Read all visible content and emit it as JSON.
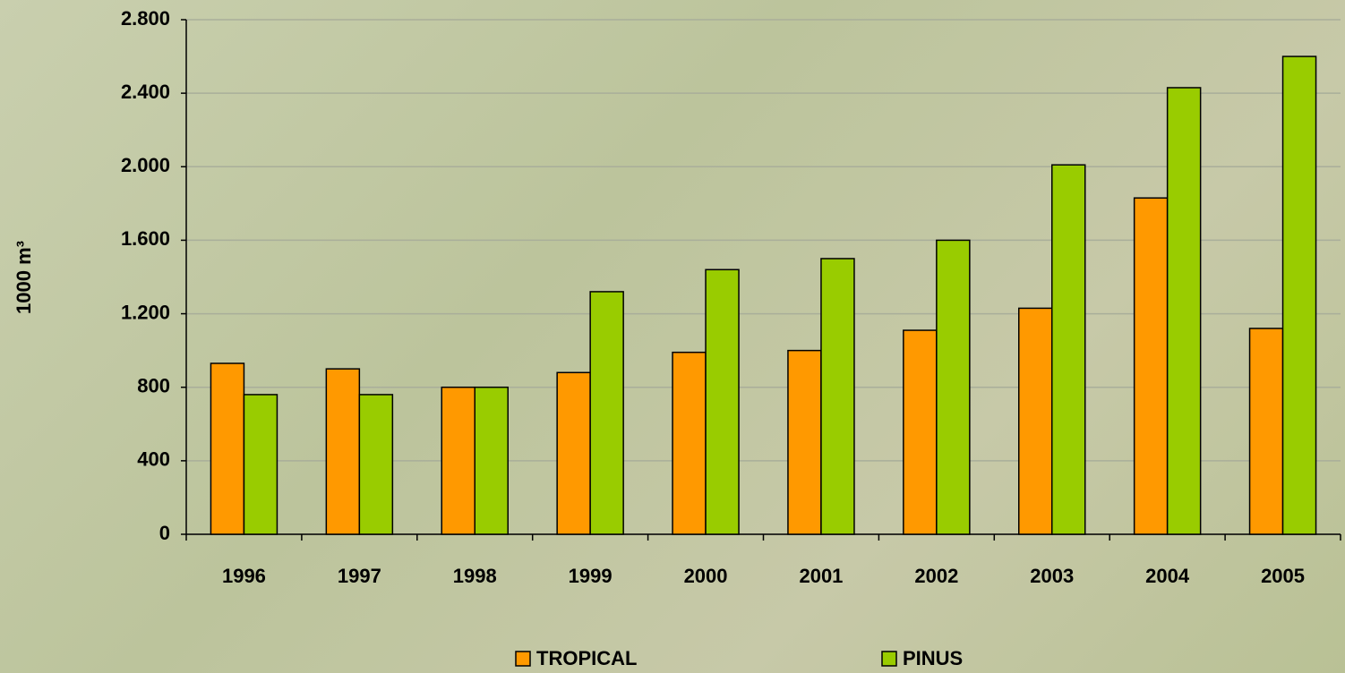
{
  "chart_data": {
    "type": "bar",
    "y_label": "1000 m³",
    "categories": [
      "1996",
      "1997",
      "1998",
      "1999",
      "2000",
      "2001",
      "2002",
      "2003",
      "2004",
      "2005"
    ],
    "series": [
      {
        "name": "TROPICAL",
        "color": "#ff9900",
        "values": [
          930,
          900,
          800,
          880,
          990,
          1000,
          1110,
          1230,
          1830,
          1120
        ]
      },
      {
        "name": "PINUS",
        "color": "#99cc00",
        "values": [
          760,
          760,
          800,
          1320,
          1440,
          1500,
          1600,
          2010,
          2430,
          2600
        ]
      }
    ],
    "ylim": [
      0,
      2800
    ],
    "yticks": [
      0,
      400,
      800,
      {
        "value": 1200,
        "label": "1.200"
      },
      {
        "value": 1600,
        "label": "1.600"
      },
      {
        "value": 2000,
        "label": "2.000"
      },
      {
        "value": 2400,
        "label": "2.400"
      },
      {
        "value": 2800,
        "label": "2.800"
      }
    ],
    "grid": true,
    "legend": "bottom"
  }
}
